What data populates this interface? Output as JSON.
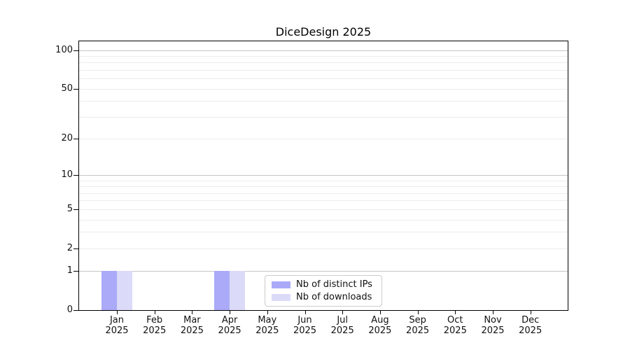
{
  "chart_data": {
    "type": "bar",
    "title": "DiceDesign 2025",
    "categories": [
      {
        "month": "Jan",
        "year": "2025"
      },
      {
        "month": "Feb",
        "year": "2025"
      },
      {
        "month": "Mar",
        "year": "2025"
      },
      {
        "month": "Apr",
        "year": "2025"
      },
      {
        "month": "May",
        "year": "2025"
      },
      {
        "month": "Jun",
        "year": "2025"
      },
      {
        "month": "Jul",
        "year": "2025"
      },
      {
        "month": "Aug",
        "year": "2025"
      },
      {
        "month": "Sep",
        "year": "2025"
      },
      {
        "month": "Oct",
        "year": "2025"
      },
      {
        "month": "Nov",
        "year": "2025"
      },
      {
        "month": "Dec",
        "year": "2025"
      }
    ],
    "series": [
      {
        "name": "Nb of distinct IPs",
        "color": "#aaaaf8",
        "values": [
          1,
          0,
          0,
          1,
          0,
          0,
          0,
          0,
          0,
          0,
          0,
          0
        ]
      },
      {
        "name": "Nb of downloads",
        "color": "#dbdbf9",
        "values": [
          1,
          0,
          0,
          1,
          0,
          0,
          0,
          0,
          0,
          0,
          0,
          0
        ]
      }
    ],
    "yscale": "log1p",
    "ylim": [
      0,
      116
    ],
    "y_ticks": [
      100,
      50,
      20,
      10,
      5,
      2,
      1,
      0
    ],
    "y_major_gridlines": [
      1,
      10,
      100
    ],
    "y_minor_gridlines": [
      2,
      3,
      4,
      5,
      6,
      7,
      8,
      9,
      20,
      30,
      40,
      50,
      60,
      70,
      80,
      90
    ],
    "grid": true,
    "legend_position": "lower center",
    "colors": {
      "major_grid": "#c6c6c6",
      "minor_grid": "#ececec",
      "spine": "#000000",
      "text": "#111111"
    }
  }
}
